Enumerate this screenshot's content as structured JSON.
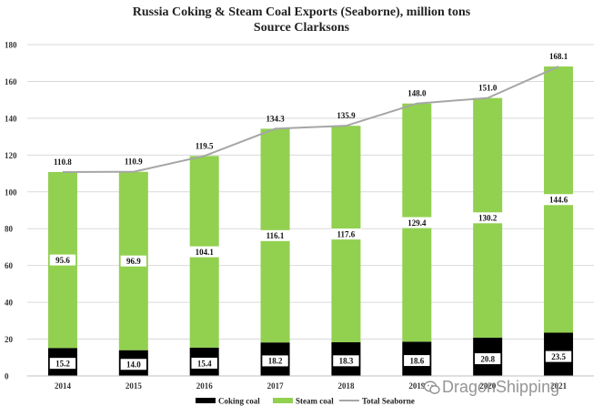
{
  "chart_data": {
    "type": "bar",
    "title": "Russia Coking & Steam Coal Exports (Seaborne), million tons",
    "subtitle": "Source Clarksons",
    "categories": [
      "2014",
      "2015",
      "2016",
      "2017",
      "2018",
      "2019",
      "2020",
      "2021"
    ],
    "ylim": [
      0,
      180
    ],
    "yticks": [
      0,
      20,
      40,
      60,
      80,
      100,
      120,
      140,
      160,
      180
    ],
    "grid": true,
    "stacked": true,
    "legend_position": "bottom",
    "series": [
      {
        "name": "Coking coal",
        "type": "bar",
        "color": "#000000",
        "values": [
          15.2,
          14.0,
          15.4,
          18.2,
          18.3,
          18.6,
          20.8,
          23.5
        ],
        "labels": [
          "15.2",
          "14.0",
          "15.4",
          "18.2",
          "18.3",
          "18.6",
          "20.8",
          "23.5"
        ]
      },
      {
        "name": "Steam coal",
        "type": "bar",
        "color": "#92d050",
        "values": [
          95.6,
          96.9,
          104.1,
          116.1,
          117.6,
          129.4,
          130.2,
          144.6
        ],
        "labels": [
          "95.6",
          "96.9",
          "104.1",
          "116.1",
          "117.6",
          "129.4",
          "130.2",
          "144.6"
        ]
      },
      {
        "name": "Total Seaborne",
        "type": "line",
        "color": "#a6a6a6",
        "values": [
          110.8,
          110.9,
          119.5,
          134.3,
          135.9,
          148.0,
          151.0,
          168.1
        ],
        "labels": [
          "110.8",
          "110.9",
          "119.5",
          "134.3",
          "135.9",
          "148.0",
          "151.0",
          "168.1"
        ]
      }
    ]
  },
  "watermark": {
    "text": "DragonShipping",
    "icon": "wechat-icon"
  }
}
